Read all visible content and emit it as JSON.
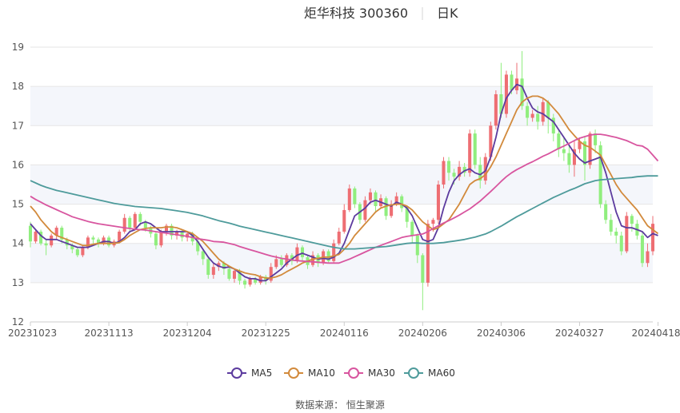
{
  "chart_data": {
    "type": "candlestick",
    "title": "炬华科技 300360",
    "subtitle": "日K",
    "source": "数据来源： 恒生聚源",
    "ylim": [
      12,
      19
    ],
    "yticks": [
      12,
      13,
      14,
      15,
      16,
      17,
      18,
      19
    ],
    "xticks": [
      {
        "label": "20231023",
        "index": 0
      },
      {
        "label": "20231113",
        "index": 15
      },
      {
        "label": "20231204",
        "index": 30
      },
      {
        "label": "20231225",
        "index": 45
      },
      {
        "label": "20240116",
        "index": 60
      },
      {
        "label": "20240206",
        "index": 75
      },
      {
        "label": "20240306",
        "index": 90
      },
      {
        "label": "20240327",
        "index": 105
      },
      {
        "label": "20240418",
        "index": 120
      }
    ],
    "up_color": "#ee6e73",
    "down_color": "#90ee7e",
    "candles": [
      [
        14.45,
        14.05,
        14.55,
        13.9
      ],
      [
        14.05,
        14.3,
        14.35,
        14.0
      ],
      [
        14.3,
        14.0,
        14.35,
        13.95
      ],
      [
        14.0,
        13.95,
        14.1,
        13.7
      ],
      [
        13.95,
        14.2,
        14.25,
        13.9
      ],
      [
        14.2,
        14.4,
        14.45,
        14.1
      ],
      [
        14.4,
        14.1,
        14.45,
        14.0
      ],
      [
        14.1,
        13.95,
        14.15,
        13.85
      ],
      [
        13.95,
        13.85,
        14.0,
        13.75
      ],
      [
        13.85,
        13.7,
        13.9,
        13.65
      ],
      [
        13.7,
        13.9,
        13.95,
        13.65
      ],
      [
        13.9,
        14.15,
        14.2,
        13.85
      ],
      [
        14.15,
        14.1,
        14.2,
        14.0
      ],
      [
        14.1,
        14.0,
        14.15,
        13.9
      ],
      [
        14.0,
        14.15,
        14.2,
        13.95
      ],
      [
        14.15,
        13.95,
        14.2,
        13.9
      ],
      [
        13.95,
        14.05,
        14.1,
        13.9
      ],
      [
        14.05,
        14.3,
        14.35,
        14.0
      ],
      [
        14.3,
        14.65,
        14.75,
        14.25
      ],
      [
        14.65,
        14.4,
        14.7,
        14.3
      ],
      [
        14.4,
        14.75,
        14.8,
        14.35
      ],
      [
        14.75,
        14.55,
        14.8,
        14.45
      ],
      [
        14.55,
        14.4,
        14.6,
        14.3
      ],
      [
        14.4,
        14.25,
        14.45,
        14.15
      ],
      [
        14.25,
        13.95,
        14.3,
        13.85
      ],
      [
        13.95,
        14.3,
        14.35,
        13.9
      ],
      [
        14.3,
        14.45,
        14.5,
        14.2
      ],
      [
        14.45,
        14.2,
        14.5,
        14.1
      ],
      [
        14.2,
        14.3,
        14.35,
        14.1
      ],
      [
        14.3,
        14.15,
        14.35,
        14.05
      ],
      [
        14.15,
        14.25,
        14.3,
        14.05
      ],
      [
        14.25,
        14.05,
        14.3,
        13.95
      ],
      [
        14.05,
        13.8,
        14.1,
        13.7
      ],
      [
        13.8,
        13.6,
        13.85,
        13.45
      ],
      [
        13.6,
        13.2,
        13.65,
        13.1
      ],
      [
        13.2,
        13.4,
        13.5,
        13.1
      ],
      [
        13.4,
        13.5,
        13.55,
        13.3
      ],
      [
        13.5,
        13.35,
        13.55,
        13.2
      ],
      [
        13.35,
        13.1,
        13.4,
        13.05
      ],
      [
        13.1,
        13.3,
        13.35,
        13.0
      ],
      [
        13.3,
        13.05,
        13.35,
        12.95
      ],
      [
        13.05,
        12.95,
        13.1,
        12.85
      ],
      [
        12.95,
        13.1,
        13.15,
        12.9
      ],
      [
        13.1,
        13.0,
        13.15,
        12.95
      ],
      [
        13.0,
        13.15,
        13.2,
        12.95
      ],
      [
        13.15,
        13.05,
        13.2,
        12.95
      ],
      [
        13.05,
        13.4,
        13.5,
        13.0
      ],
      [
        13.4,
        13.6,
        13.7,
        13.35
      ],
      [
        13.6,
        13.45,
        13.7,
        13.4
      ],
      [
        13.45,
        13.7,
        13.75,
        13.4
      ],
      [
        13.7,
        13.55,
        13.75,
        13.45
      ],
      [
        13.55,
        13.9,
        14.0,
        13.5
      ],
      [
        13.9,
        13.65,
        13.95,
        13.55
      ],
      [
        13.65,
        13.45,
        13.7,
        13.35
      ],
      [
        13.45,
        13.7,
        13.8,
        13.4
      ],
      [
        13.7,
        13.5,
        13.75,
        13.4
      ],
      [
        13.5,
        13.8,
        13.85,
        13.45
      ],
      [
        13.8,
        13.55,
        13.85,
        13.5
      ],
      [
        13.55,
        14.0,
        14.1,
        13.5
      ],
      [
        14.0,
        14.3,
        14.4,
        13.95
      ],
      [
        14.3,
        14.85,
        15.0,
        14.25
      ],
      [
        14.85,
        15.4,
        15.5,
        14.8
      ],
      [
        15.4,
        15.0,
        15.45,
        14.9
      ],
      [
        15.0,
        14.6,
        15.05,
        14.5
      ],
      [
        14.6,
        15.1,
        15.2,
        14.55
      ],
      [
        15.1,
        15.3,
        15.4,
        15.0
      ],
      [
        15.3,
        14.95,
        15.35,
        14.8
      ],
      [
        14.95,
        15.15,
        15.25,
        14.9
      ],
      [
        15.15,
        14.7,
        15.2,
        14.6
      ],
      [
        14.7,
        15.0,
        15.1,
        14.65
      ],
      [
        15.0,
        15.2,
        15.3,
        14.95
      ],
      [
        15.2,
        14.9,
        15.25,
        14.8
      ],
      [
        14.9,
        14.55,
        14.95,
        14.4
      ],
      [
        14.55,
        14.2,
        14.6,
        14.0
      ],
      [
        14.2,
        13.7,
        14.25,
        13.5
      ],
      [
        13.7,
        13.0,
        13.75,
        12.3
      ],
      [
        13.0,
        14.5,
        14.6,
        12.9
      ],
      [
        14.5,
        14.6,
        14.65,
        14.3
      ],
      [
        14.6,
        15.5,
        15.6,
        14.5
      ],
      [
        15.5,
        16.1,
        16.2,
        15.4
      ],
      [
        16.1,
        15.8,
        16.2,
        15.6
      ],
      [
        15.8,
        15.7,
        15.9,
        15.5
      ],
      [
        15.7,
        15.95,
        16.1,
        15.6
      ],
      [
        15.95,
        15.8,
        16.05,
        15.7
      ],
      [
        15.8,
        16.8,
        16.9,
        15.7
      ],
      [
        16.8,
        16.0,
        16.9,
        15.9
      ],
      [
        16.0,
        15.6,
        16.2,
        15.4
      ],
      [
        15.6,
        16.2,
        16.3,
        15.5
      ],
      [
        16.2,
        17.0,
        17.1,
        16.1
      ],
      [
        17.0,
        17.8,
        17.9,
        16.9
      ],
      [
        17.8,
        17.3,
        18.6,
        17.2
      ],
      [
        17.3,
        18.3,
        18.4,
        17.2
      ],
      [
        18.3,
        17.9,
        18.4,
        17.8
      ],
      [
        17.9,
        18.2,
        18.6,
        17.8
      ],
      [
        18.2,
        17.5,
        18.9,
        17.4
      ],
      [
        17.5,
        17.2,
        17.6,
        17.0
      ],
      [
        17.2,
        17.3,
        17.4,
        17.1
      ],
      [
        17.3,
        17.1,
        17.5,
        16.9
      ],
      [
        17.1,
        17.6,
        17.7,
        17.0
      ],
      [
        17.6,
        17.2,
        17.65,
        16.8
      ],
      [
        17.2,
        16.8,
        17.3,
        16.6
      ],
      [
        16.8,
        16.4,
        16.9,
        16.2
      ],
      [
        16.4,
        16.3,
        16.7,
        16.1
      ],
      [
        16.3,
        16.0,
        16.5,
        15.8
      ],
      [
        16.0,
        16.4,
        16.6,
        15.7
      ],
      [
        16.4,
        16.6,
        16.7,
        16.3
      ],
      [
        16.6,
        16.0,
        16.7,
        15.6
      ],
      [
        16.0,
        16.8,
        16.85,
        15.9
      ],
      [
        16.8,
        16.5,
        16.9,
        16.3
      ],
      [
        16.5,
        15.0,
        16.6,
        14.9
      ],
      [
        15.0,
        14.6,
        15.1,
        14.5
      ],
      [
        14.6,
        14.3,
        14.75,
        14.2
      ],
      [
        14.3,
        14.2,
        14.4,
        14.0
      ],
      [
        14.2,
        13.8,
        14.3,
        13.7
      ],
      [
        13.8,
        14.7,
        14.8,
        13.75
      ],
      [
        14.7,
        14.5,
        14.75,
        14.3
      ],
      [
        14.5,
        14.2,
        14.6,
        14.1
      ],
      [
        14.2,
        13.5,
        14.3,
        13.4
      ],
      [
        13.5,
        13.8,
        14.0,
        13.4
      ],
      [
        13.8,
        14.5,
        14.7,
        13.7
      ]
    ],
    "series": [
      {
        "name": "MA5",
        "color": "#5c3b9e",
        "values": [
          14.5,
          14.35,
          14.2,
          14.1,
          14.1,
          14.1,
          14.05,
          14.0,
          13.95,
          13.9,
          13.9,
          13.9,
          13.95,
          14.0,
          14.05,
          14.05,
          14.0,
          14.05,
          14.15,
          14.3,
          14.35,
          14.5,
          14.55,
          14.5,
          14.4,
          14.3,
          14.3,
          14.3,
          14.3,
          14.3,
          14.3,
          14.2,
          14.05,
          13.85,
          13.65,
          13.5,
          13.42,
          13.38,
          13.4,
          13.35,
          13.25,
          13.15,
          13.1,
          13.1,
          13.05,
          13.05,
          13.15,
          13.25,
          13.35,
          13.5,
          13.6,
          13.7,
          13.75,
          13.7,
          13.65,
          13.6,
          13.62,
          13.6,
          13.65,
          13.75,
          14.0,
          14.35,
          14.7,
          14.8,
          14.9,
          15.05,
          15.1,
          15.05,
          15.0,
          14.95,
          15.05,
          15.0,
          14.9,
          14.7,
          14.4,
          14.1,
          14.05,
          14.1,
          14.4,
          14.9,
          15.3,
          15.6,
          15.75,
          15.85,
          15.9,
          15.8,
          15.75,
          15.85,
          16.2,
          16.7,
          17.3,
          17.7,
          17.9,
          18.05,
          18.0,
          17.7,
          17.45,
          17.35,
          17.3,
          17.2,
          17.1,
          16.9,
          16.7,
          16.5,
          16.3,
          16.15,
          16.05,
          16.1,
          16.15,
          16.2,
          15.8,
          15.3,
          14.8,
          14.45,
          14.4,
          14.4,
          14.35,
          14.3,
          14.15,
          14.25,
          14.2
        ]
      },
      {
        "name": "MA10",
        "color": "#d28a3c",
        "values": [
          14.95,
          14.8,
          14.6,
          14.45,
          14.3,
          14.2,
          14.15,
          14.1,
          14.05,
          14.0,
          13.95,
          13.95,
          13.98,
          14.0,
          14.0,
          14.0,
          14.0,
          14.02,
          14.1,
          14.2,
          14.28,
          14.35,
          14.38,
          14.4,
          14.4,
          14.4,
          14.42,
          14.42,
          14.4,
          14.35,
          14.3,
          14.25,
          14.15,
          14.05,
          13.9,
          13.75,
          13.6,
          13.5,
          13.42,
          13.35,
          13.3,
          13.25,
          13.22,
          13.2,
          13.15,
          13.12,
          13.12,
          13.15,
          13.2,
          13.28,
          13.35,
          13.42,
          13.5,
          13.55,
          13.6,
          13.62,
          13.65,
          13.65,
          13.68,
          13.72,
          13.85,
          14.0,
          14.2,
          14.35,
          14.5,
          14.65,
          14.8,
          14.9,
          14.95,
          14.98,
          15.0,
          15.0,
          14.95,
          14.85,
          14.7,
          14.55,
          14.45,
          14.35,
          14.4,
          14.5,
          14.6,
          14.8,
          15.0,
          15.25,
          15.5,
          15.6,
          15.65,
          15.75,
          15.95,
          16.2,
          16.5,
          16.8,
          17.1,
          17.4,
          17.6,
          17.7,
          17.75,
          17.75,
          17.7,
          17.6,
          17.45,
          17.3,
          17.1,
          16.9,
          16.75,
          16.6,
          16.5,
          16.45,
          16.35,
          16.25,
          16.0,
          15.75,
          15.5,
          15.3,
          15.15,
          15.0,
          14.85,
          14.65,
          14.45,
          14.35,
          14.25
        ]
      },
      {
        "name": "MA30",
        "color": "#d8559f",
        "values": [
          15.2,
          15.12,
          15.05,
          14.98,
          14.92,
          14.86,
          14.8,
          14.74,
          14.68,
          14.64,
          14.6,
          14.56,
          14.53,
          14.5,
          14.48,
          14.46,
          14.44,
          14.42,
          14.4,
          14.38,
          14.36,
          14.35,
          14.34,
          14.32,
          14.3,
          14.28,
          14.26,
          14.24,
          14.22,
          14.2,
          14.18,
          14.15,
          14.12,
          14.1,
          14.08,
          14.05,
          14.04,
          14.03,
          14.0,
          13.97,
          13.92,
          13.88,
          13.84,
          13.8,
          13.76,
          13.72,
          13.68,
          13.65,
          13.62,
          13.6,
          13.58,
          13.56,
          13.55,
          13.54,
          13.53,
          13.52,
          13.51,
          13.5,
          13.5,
          13.5,
          13.55,
          13.6,
          13.66,
          13.72,
          13.78,
          13.84,
          13.9,
          13.95,
          14.0,
          14.05,
          14.1,
          14.15,
          14.18,
          14.2,
          14.22,
          14.24,
          14.3,
          14.38,
          14.45,
          14.52,
          14.58,
          14.65,
          14.72,
          14.8,
          14.88,
          14.98,
          15.08,
          15.2,
          15.32,
          15.45,
          15.58,
          15.7,
          15.8,
          15.88,
          15.95,
          16.02,
          16.08,
          16.15,
          16.22,
          16.28,
          16.35,
          16.42,
          16.48,
          16.55,
          16.62,
          16.68,
          16.72,
          16.76,
          16.78,
          16.78,
          16.76,
          16.73,
          16.7,
          16.66,
          16.62,
          16.56,
          16.5,
          16.48,
          16.4,
          16.25,
          16.1
        ]
      },
      {
        "name": "MA60",
        "color": "#4e9b9b",
        "values": [
          15.6,
          15.54,
          15.48,
          15.43,
          15.39,
          15.35,
          15.32,
          15.29,
          15.26,
          15.23,
          15.2,
          15.17,
          15.14,
          15.11,
          15.08,
          15.05,
          15.02,
          15.0,
          14.98,
          14.96,
          14.94,
          14.93,
          14.92,
          14.91,
          14.9,
          14.89,
          14.87,
          14.85,
          14.83,
          14.81,
          14.79,
          14.76,
          14.73,
          14.7,
          14.66,
          14.62,
          14.58,
          14.55,
          14.52,
          14.48,
          14.44,
          14.41,
          14.38,
          14.35,
          14.32,
          14.29,
          14.26,
          14.23,
          14.2,
          14.17,
          14.14,
          14.11,
          14.08,
          14.05,
          14.02,
          13.99,
          13.96,
          13.93,
          13.9,
          13.88,
          13.86,
          13.86,
          13.86,
          13.87,
          13.88,
          13.89,
          13.9,
          13.91,
          13.92,
          13.94,
          13.96,
          13.98,
          14.0,
          14.01,
          14.01,
          14.0,
          14.0,
          14.0,
          14.01,
          14.02,
          14.04,
          14.06,
          14.08,
          14.1,
          14.13,
          14.16,
          14.2,
          14.24,
          14.3,
          14.37,
          14.44,
          14.52,
          14.6,
          14.68,
          14.75,
          14.82,
          14.89,
          14.96,
          15.03,
          15.1,
          15.17,
          15.23,
          15.29,
          15.35,
          15.4,
          15.46,
          15.52,
          15.56,
          15.6,
          15.62,
          15.63,
          15.64,
          15.65,
          15.66,
          15.67,
          15.68,
          15.7,
          15.71,
          15.72,
          15.72,
          15.72
        ]
      }
    ]
  }
}
